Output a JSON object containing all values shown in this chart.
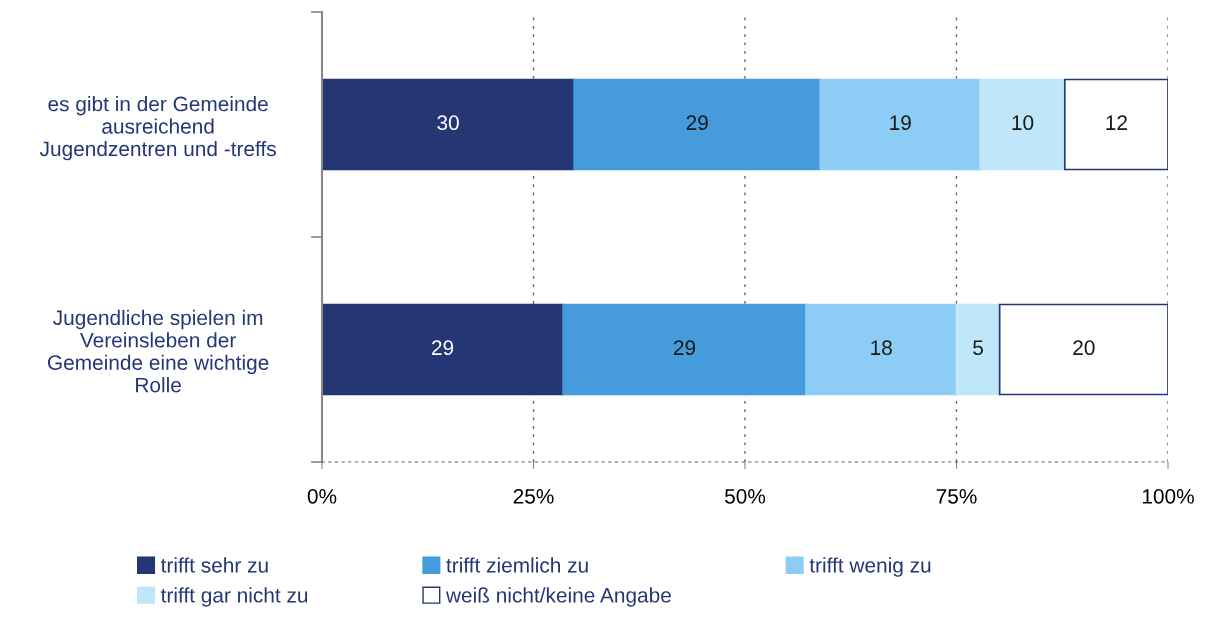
{
  "chart_data": {
    "type": "bar",
    "orientation": "horizontal",
    "stacked": true,
    "categories": [
      "es gibt in der Gemeinde\nausreichend\nJugendzentren und -treffs",
      "Jugendliche spielen im\nVereinsleben der\nGemeinde eine wichtige\nRolle"
    ],
    "series": [
      {
        "name": "trifft sehr zu",
        "color": "#243673",
        "values": [
          29.8,
          28.5
        ],
        "value_labels": [
          "30",
          "29"
        ]
      },
      {
        "name": "trifft ziemlich zu",
        "color": "#459bdb",
        "values": [
          29.1,
          28.7
        ],
        "value_labels": [
          "29",
          "29"
        ]
      },
      {
        "name": "trifft wenig zu",
        "color": "#8dcdf5",
        "values": [
          18.9,
          17.8
        ],
        "value_labels": [
          "19",
          "18"
        ]
      },
      {
        "name": "trifft gar nicht zu",
        "color": "#c0e7f9",
        "values": [
          10.0,
          5.1
        ],
        "value_labels": [
          "10",
          "5"
        ]
      },
      {
        "name": "weiß nicht/keine Angabe",
        "color": "#ffffff",
        "values": [
          12.2,
          19.9
        ],
        "value_labels": [
          "12",
          "20"
        ]
      }
    ],
    "xlim": [
      0,
      100
    ],
    "xticks": [
      {
        "value": 0,
        "label": "0%"
      },
      {
        "value": 25,
        "label": "25%"
      },
      {
        "value": 50,
        "label": "50%"
      },
      {
        "value": 75,
        "label": "75%"
      },
      {
        "value": 100,
        "label": "100%"
      }
    ],
    "grid": "x",
    "legend": "bottom"
  }
}
